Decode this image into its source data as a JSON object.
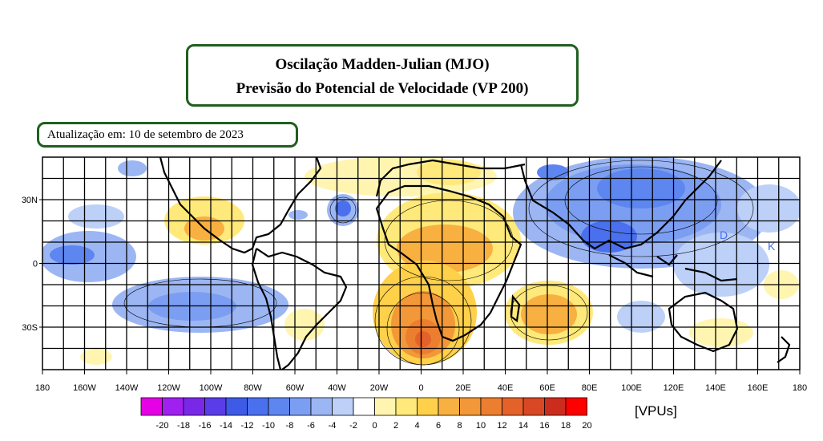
{
  "title": {
    "line1": "Oscilação Madden-Julian (MJO)",
    "line2": "Previsão do Potencial de Velocidade (VP 200)"
  },
  "update_label": "Atualização em: 10 de setembro de 2023",
  "map": {
    "projection": "cylindrical equidistant",
    "lon_range": [
      -180,
      180
    ],
    "lat_range": [
      -50,
      50
    ],
    "lat_ticks": [
      "30N",
      "0",
      "30S"
    ],
    "lon_ticks": [
      "180",
      "160W",
      "140W",
      "120W",
      "100W",
      "80W",
      "60W",
      "40W",
      "20W",
      "0",
      "20E",
      "40E",
      "60E",
      "80E",
      "100E",
      "120E",
      "140E",
      "160E",
      "180"
    ],
    "grid": true,
    "map_labels": [
      "D",
      "K"
    ]
  },
  "colorbar": {
    "ticks": [
      "-20",
      "-18",
      "-16",
      "-14",
      "-12",
      "-10",
      "-8",
      "-6",
      "-4",
      "-2",
      "0",
      "2",
      "4",
      "6",
      "8",
      "10",
      "12",
      "14",
      "16",
      "18",
      "20"
    ],
    "colors": [
      "#e600e6",
      "#a020f0",
      "#7a28e8",
      "#5a3ce8",
      "#3e5ae6",
      "#4a70ee",
      "#5e86f0",
      "#7c9ef2",
      "#9cb6f4",
      "#bcd0f8",
      "#ffffff",
      "#fff5b0",
      "#ffe97a",
      "#ffd04a",
      "#f8b040",
      "#f29838",
      "#ec7e30",
      "#e4622a",
      "#d84824",
      "#cc2c1e",
      "#ff0000"
    ],
    "units": "[VPUs]"
  },
  "features": [
    {
      "name": "africa-anomaly",
      "color": "#f8b040"
    },
    {
      "name": "indonesia-anomaly",
      "color": "#5e86f0"
    }
  ]
}
